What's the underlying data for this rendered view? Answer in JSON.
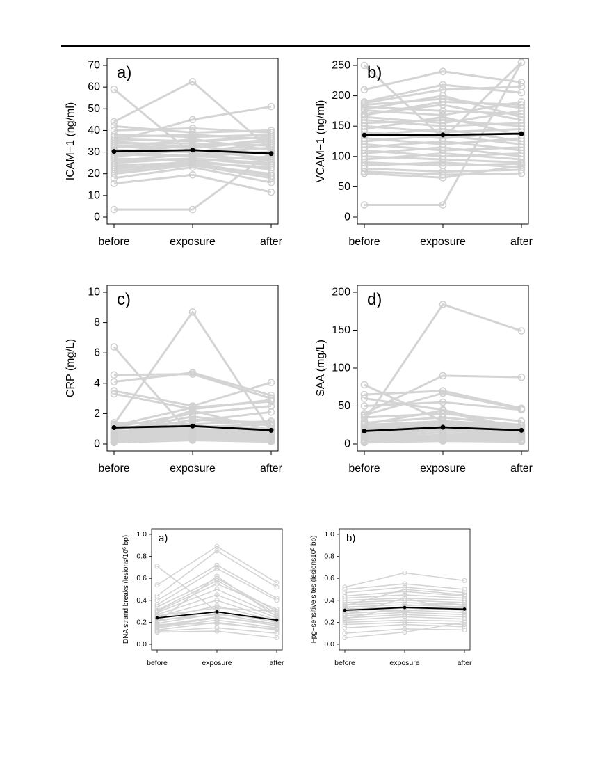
{
  "chart_data": [
    {
      "type": "line",
      "panel_label": "a)",
      "ylabel": "ICAM−1 (ng/ml)",
      "categories": [
        "before",
        "exposure",
        "after"
      ],
      "ylim": [
        0,
        70
      ],
      "yticks": [
        0,
        10,
        20,
        30,
        40,
        50,
        60,
        70
      ],
      "mean": [
        30.3,
        30.9,
        29.3
      ],
      "subjects": [
        [
          59,
          29,
          30
        ],
        [
          44,
          62.5,
          31
        ],
        [
          35,
          45,
          51
        ],
        [
          40,
          41,
          39
        ],
        [
          38,
          37,
          38
        ],
        [
          36,
          35,
          37
        ],
        [
          34,
          34,
          33
        ],
        [
          33,
          32,
          35
        ],
        [
          32,
          36,
          31
        ],
        [
          31,
          30,
          32
        ],
        [
          30,
          33,
          29
        ],
        [
          29,
          28,
          30
        ],
        [
          28,
          31,
          27
        ],
        [
          27,
          26,
          28
        ],
        [
          26,
          29,
          26
        ],
        [
          25,
          27,
          24
        ],
        [
          24,
          25,
          23
        ],
        [
          22,
          26,
          22
        ],
        [
          20,
          24,
          18
        ],
        [
          18,
          23,
          16
        ],
        [
          15.5,
          19.5,
          11.5
        ],
        [
          3.5,
          3.5,
          30
        ],
        [
          37,
          38,
          36
        ],
        [
          42,
          39,
          40
        ],
        [
          23,
          24,
          20
        ],
        [
          21,
          25,
          19
        ],
        [
          33,
          30,
          34
        ],
        [
          35,
          32,
          36
        ],
        [
          30,
          28,
          27
        ],
        [
          26,
          27,
          25
        ]
      ]
    },
    {
      "type": "line",
      "panel_label": "b)",
      "ylabel": "VCAM−1 (ng/ml)",
      "categories": [
        "before",
        "exposure",
        "after"
      ],
      "ylim": [
        0,
        250
      ],
      "yticks": [
        0,
        50,
        100,
        150,
        200,
        250
      ],
      "mean": [
        135,
        135.5,
        137.5
      ],
      "subjects": [
        [
          250,
          130,
          255
        ],
        [
          210,
          240,
          222
        ],
        [
          190,
          218,
          205
        ],
        [
          188,
          210,
          215
        ],
        [
          185,
          195,
          180
        ],
        [
          182,
          175,
          170
        ],
        [
          176,
          168,
          190
        ],
        [
          170,
          185,
          160
        ],
        [
          165,
          155,
          175
        ],
        [
          160,
          150,
          155
        ],
        [
          155,
          160,
          150
        ],
        [
          150,
          140,
          145
        ],
        [
          145,
          165,
          135
        ],
        [
          140,
          130,
          140
        ],
        [
          135,
          145,
          125
        ],
        [
          130,
          120,
          130
        ],
        [
          125,
          135,
          120
        ],
        [
          120,
          110,
          115
        ],
        [
          115,
          125,
          110
        ],
        [
          110,
          100,
          105
        ],
        [
          105,
          115,
          100
        ],
        [
          100,
          95,
          90
        ],
        [
          95,
          105,
          95
        ],
        [
          90,
          85,
          88
        ],
        [
          85,
          90,
          82
        ],
        [
          80,
          75,
          78
        ],
        [
          75,
          70,
          72
        ],
        [
          72,
          65,
          85
        ],
        [
          20,
          20,
          255
        ],
        [
          178,
          200,
          165
        ],
        [
          168,
          190,
          185
        ]
      ]
    },
    {
      "type": "line",
      "panel_label": "c)",
      "ylabel": "CRP (mg/L)",
      "categories": [
        "before",
        "exposure",
        "after"
      ],
      "ylim": [
        0,
        10
      ],
      "yticks": [
        0,
        2,
        4,
        6,
        8,
        10
      ],
      "mean": [
        1.08,
        1.18,
        0.9
      ],
      "subjects": [
        [
          6.4,
          0.5,
          0.3
        ],
        [
          4.55,
          4.6,
          3.0
        ],
        [
          4.1,
          4.7,
          3.2
        ],
        [
          3.5,
          2.5,
          4.05
        ],
        [
          3.3,
          2.3,
          2.9
        ],
        [
          1.3,
          8.7,
          0.8
        ],
        [
          1.2,
          2.4,
          2.8
        ],
        [
          1.1,
          2.0,
          2.5
        ],
        [
          1.0,
          1.5,
          2.1
        ],
        [
          0.9,
          1.8,
          1.2
        ],
        [
          0.8,
          1.2,
          1.0
        ],
        [
          0.7,
          1.0,
          0.8
        ],
        [
          0.6,
          0.9,
          0.7
        ],
        [
          0.5,
          0.8,
          0.6
        ],
        [
          0.45,
          0.7,
          0.5
        ],
        [
          0.4,
          0.6,
          0.45
        ],
        [
          0.35,
          0.5,
          0.4
        ],
        [
          0.3,
          0.45,
          0.35
        ],
        [
          0.25,
          0.4,
          0.3
        ],
        [
          0.2,
          0.35,
          0.25
        ],
        [
          0.15,
          0.3,
          0.2
        ],
        [
          0.1,
          0.25,
          0.15
        ],
        [
          1.4,
          1.3,
          1.5
        ],
        [
          0.55,
          2.2,
          0.9
        ],
        [
          0.65,
          1.6,
          1.4
        ],
        [
          0.75,
          1.1,
          1.3
        ]
      ]
    },
    {
      "type": "line",
      "panel_label": "d)",
      "ylabel": "SAA (mg/L)",
      "categories": [
        "before",
        "exposure",
        "after"
      ],
      "ylim": [
        0,
        200
      ],
      "yticks": [
        0,
        50,
        100,
        150,
        200
      ],
      "mean": [
        17,
        22,
        18
      ],
      "subjects": [
        [
          78,
          30,
          25
        ],
        [
          65,
          70,
          47
        ],
        [
          60,
          45,
          20
        ],
        [
          50,
          55,
          45
        ],
        [
          40,
          90,
          88
        ],
        [
          35,
          40,
          30
        ],
        [
          30,
          184,
          149
        ],
        [
          28,
          35,
          25
        ],
        [
          25,
          30,
          22
        ],
        [
          22,
          28,
          20
        ],
        [
          20,
          25,
          18
        ],
        [
          18,
          22,
          15
        ],
        [
          15,
          20,
          14
        ],
        [
          12,
          18,
          12
        ],
        [
          10,
          15,
          10
        ],
        [
          8,
          12,
          9
        ],
        [
          6,
          10,
          8
        ],
        [
          5,
          8,
          6
        ],
        [
          4,
          6,
          5
        ],
        [
          3,
          5,
          4
        ],
        [
          2,
          4,
          3
        ],
        [
          38,
          67,
          46
        ],
        [
          26,
          44,
          15
        ],
        [
          14,
          26,
          24
        ],
        [
          9,
          20,
          11
        ]
      ]
    },
    {
      "type": "line",
      "panel_label": "a)",
      "ylabel": "DNA strand breaks (lesions/10",
      "ylabel_sup": "6",
      "ylabel_suffix": " bp)",
      "categories": [
        "before",
        "exposure",
        "after"
      ],
      "ylim": [
        0,
        1.0
      ],
      "yticks": [
        0.0,
        0.2,
        0.4,
        0.6,
        0.8,
        1.0
      ],
      "mean": [
        0.24,
        0.295,
        0.22
      ],
      "subjects": [
        [
          0.71,
          0.3,
          0.2
        ],
        [
          0.54,
          0.89,
          0.56
        ],
        [
          0.44,
          0.85,
          0.52
        ],
        [
          0.4,
          0.72,
          0.42
        ],
        [
          0.36,
          0.69,
          0.4
        ],
        [
          0.34,
          0.6,
          0.3
        ],
        [
          0.31,
          0.58,
          0.28
        ],
        [
          0.29,
          0.5,
          0.26
        ],
        [
          0.27,
          0.45,
          0.24
        ],
        [
          0.25,
          0.4,
          0.22
        ],
        [
          0.23,
          0.35,
          0.21
        ],
        [
          0.21,
          0.3,
          0.2
        ],
        [
          0.19,
          0.28,
          0.18
        ],
        [
          0.17,
          0.25,
          0.17
        ],
        [
          0.15,
          0.22,
          0.15
        ],
        [
          0.13,
          0.2,
          0.13
        ],
        [
          0.12,
          0.15,
          0.1
        ],
        [
          0.11,
          0.12,
          0.06
        ],
        [
          0.3,
          0.55,
          0.32
        ],
        [
          0.26,
          0.33,
          0.3
        ],
        [
          0.2,
          0.62,
          0.25
        ],
        [
          0.18,
          0.19,
          0.14
        ],
        [
          0.16,
          0.24,
          0.19
        ],
        [
          0.22,
          0.27,
          0.23
        ]
      ]
    },
    {
      "type": "line",
      "panel_label": "b)",
      "ylabel": "Fpg−sensitive sites (lesions10",
      "ylabel_sup": "6",
      "ylabel_suffix": " bp)",
      "categories": [
        "before",
        "exposure",
        "after"
      ],
      "ylim": [
        0,
        1.0
      ],
      "yticks": [
        0.0,
        0.2,
        0.4,
        0.6,
        0.8,
        1.0
      ],
      "mean": [
        0.31,
        0.335,
        0.32
      ],
      "subjects": [
        [
          0.52,
          0.65,
          0.58
        ],
        [
          0.5,
          0.55,
          0.5
        ],
        [
          0.47,
          0.52,
          0.47
        ],
        [
          0.44,
          0.48,
          0.44
        ],
        [
          0.42,
          0.45,
          0.42
        ],
        [
          0.4,
          0.42,
          0.4
        ],
        [
          0.38,
          0.4,
          0.38
        ],
        [
          0.36,
          0.38,
          0.36
        ],
        [
          0.34,
          0.36,
          0.34
        ],
        [
          0.32,
          0.34,
          0.33
        ],
        [
          0.3,
          0.33,
          0.31
        ],
        [
          0.28,
          0.31,
          0.29
        ],
        [
          0.26,
          0.29,
          0.27
        ],
        [
          0.24,
          0.27,
          0.25
        ],
        [
          0.22,
          0.25,
          0.23
        ],
        [
          0.2,
          0.22,
          0.21
        ],
        [
          0.18,
          0.2,
          0.18
        ],
        [
          0.15,
          0.18,
          0.16
        ],
        [
          0.1,
          0.14,
          0.13
        ],
        [
          0.06,
          0.11,
          0.2
        ],
        [
          0.35,
          0.5,
          0.45
        ],
        [
          0.27,
          0.42,
          0.3
        ],
        [
          0.23,
          0.35,
          0.38
        ],
        [
          0.33,
          0.3,
          0.35
        ]
      ]
    }
  ]
}
